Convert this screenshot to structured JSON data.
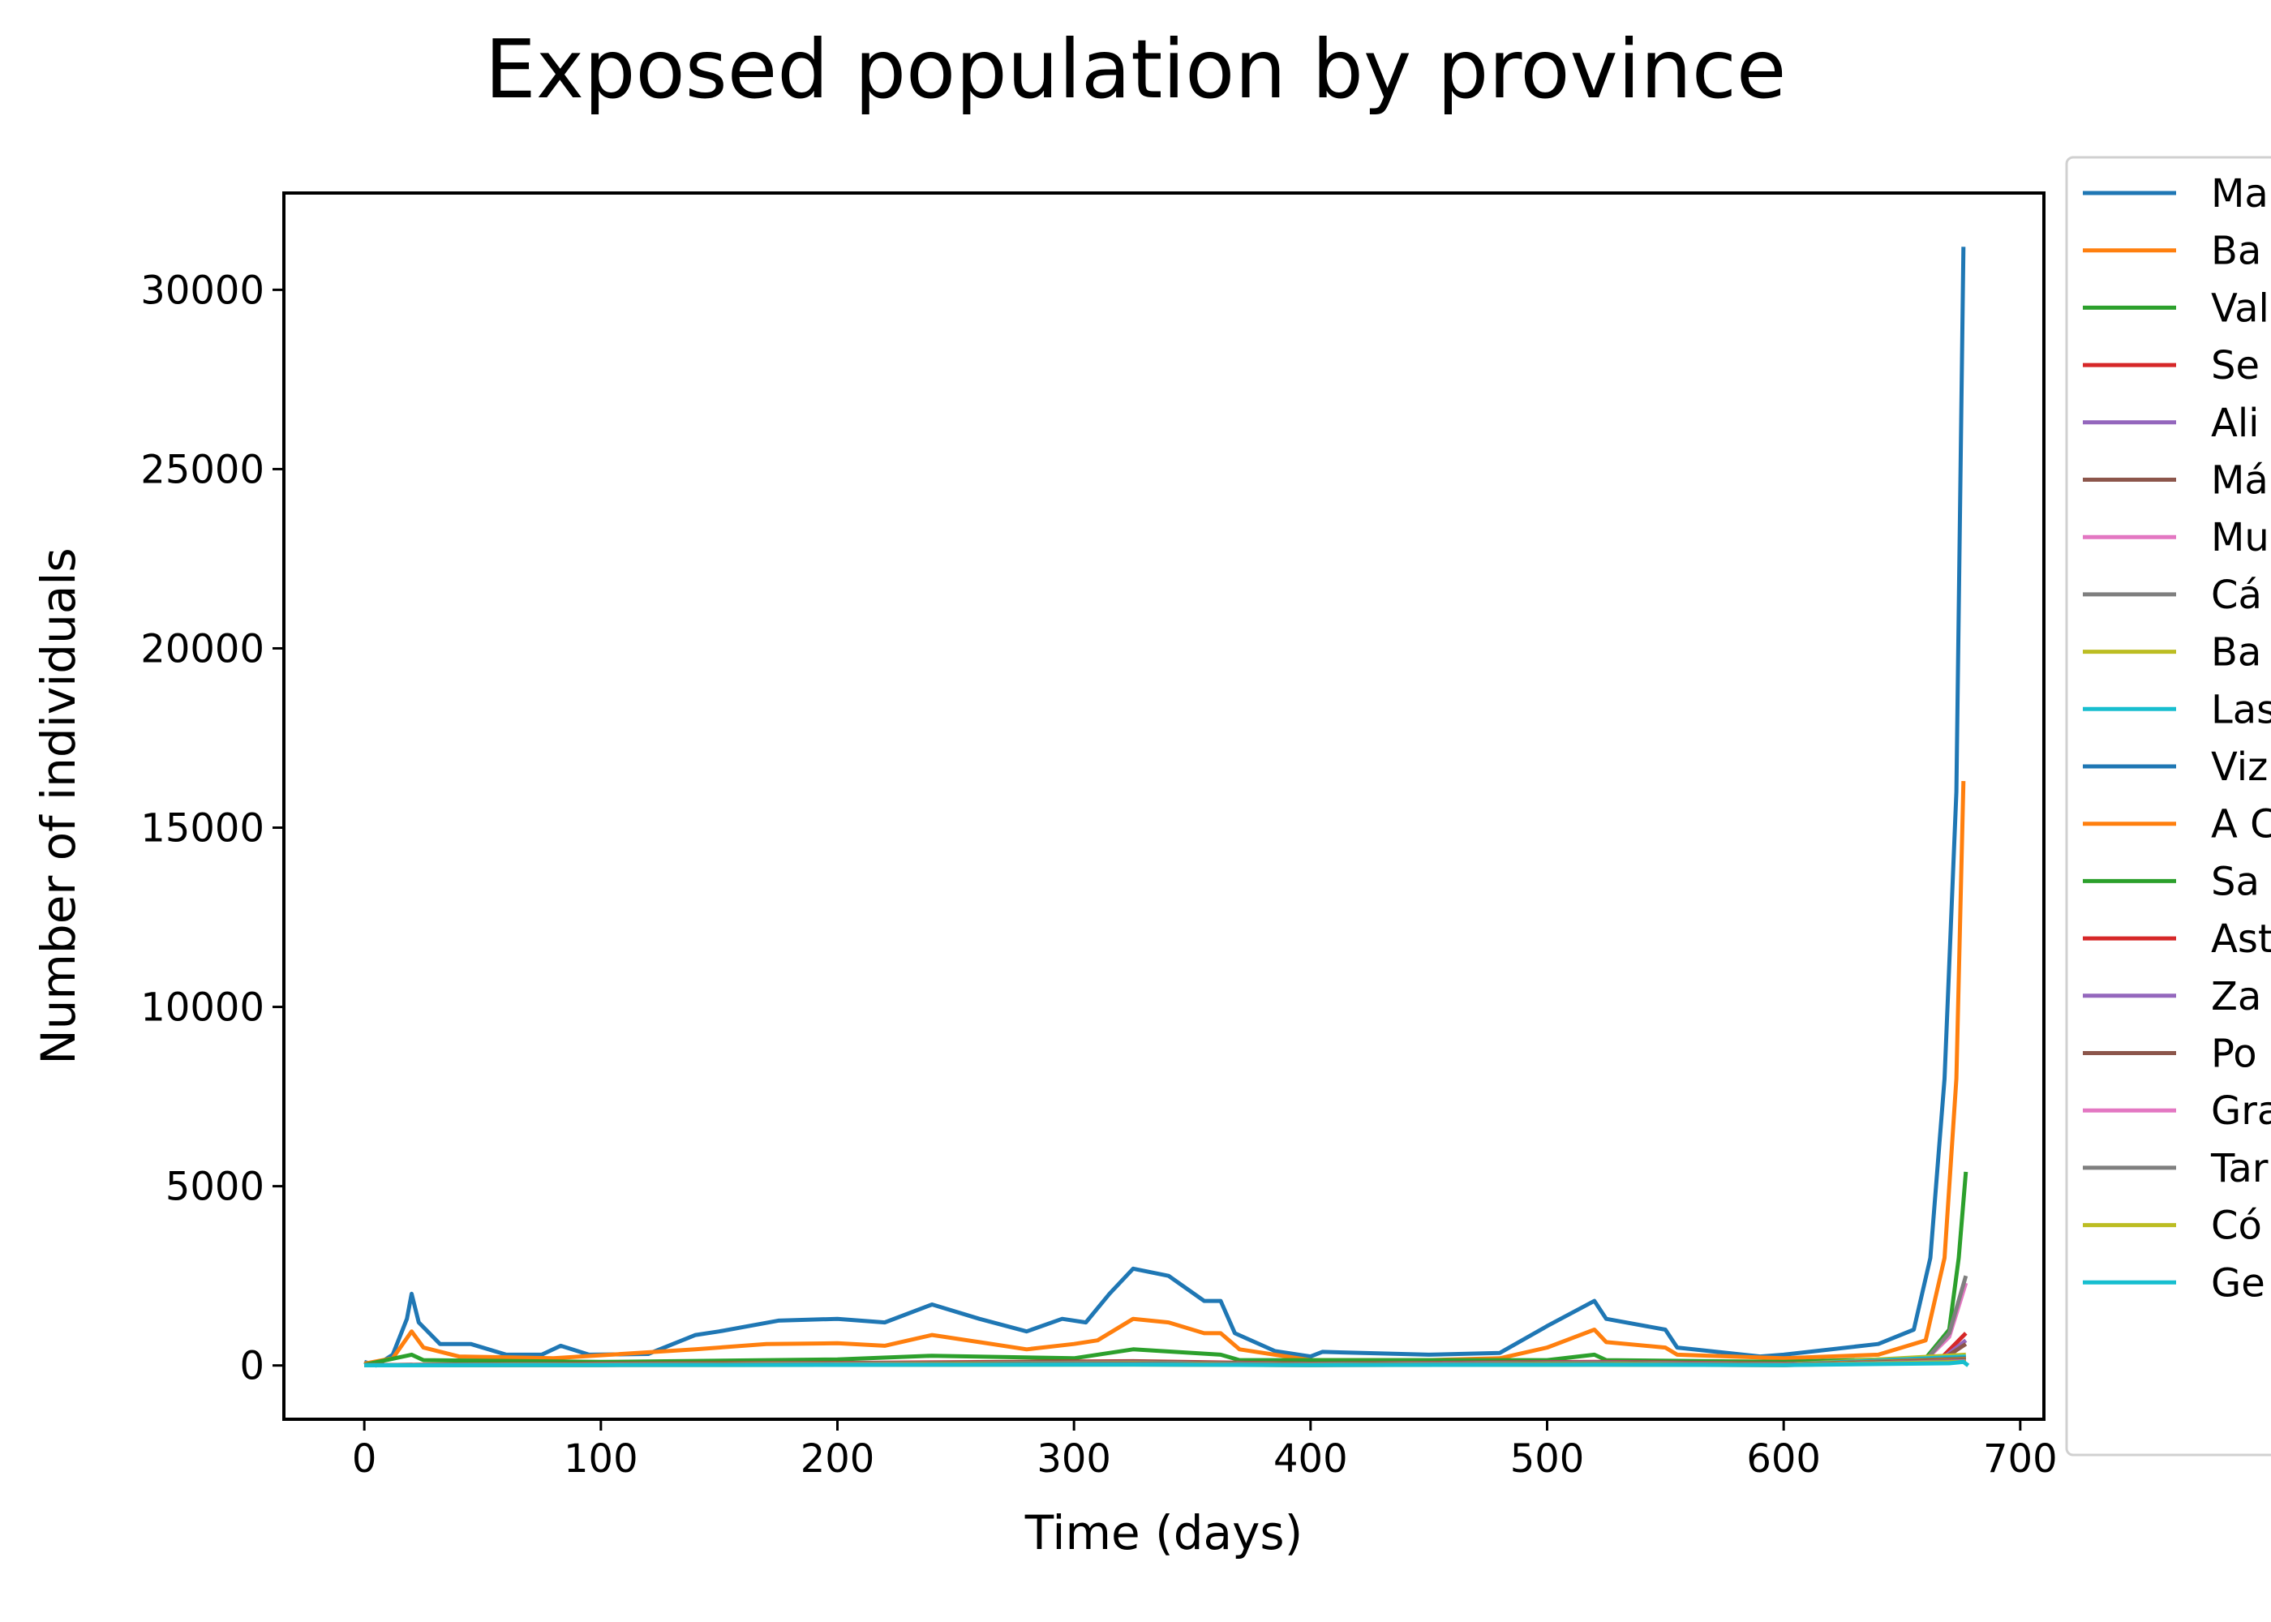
{
  "chart_data": {
    "type": "line",
    "title": "Exposed population by province",
    "xlabel": "Time (days)",
    "ylabel": "Number of individuals",
    "xlim": [
      -34,
      710
    ],
    "ylim": [
      -1500,
      32700
    ],
    "xticks": [
      0,
      100,
      200,
      300,
      400,
      500,
      600,
      700
    ],
    "yticks": [
      0,
      5000,
      10000,
      15000,
      20000,
      25000,
      30000
    ],
    "grid": false,
    "legend_position": "outside-right",
    "series": [
      {
        "name": "Ma",
        "color": "#1f77b4",
        "points": [
          [
            0,
            100
          ],
          [
            5,
            0
          ],
          [
            12,
            300
          ],
          [
            18,
            1300
          ],
          [
            20,
            2000
          ],
          [
            23,
            1200
          ],
          [
            32,
            600
          ],
          [
            45,
            600
          ],
          [
            60,
            300
          ],
          [
            75,
            300
          ],
          [
            83,
            550
          ],
          [
            95,
            300
          ],
          [
            120,
            320
          ],
          [
            140,
            850
          ],
          [
            150,
            950
          ],
          [
            175,
            1250
          ],
          [
            200,
            1300
          ],
          [
            220,
            1200
          ],
          [
            240,
            1700
          ],
          [
            260,
            1300
          ],
          [
            280,
            950
          ],
          [
            295,
            1300
          ],
          [
            305,
            1200
          ],
          [
            315,
            2000
          ],
          [
            325,
            2700
          ],
          [
            340,
            2500
          ],
          [
            355,
            1800
          ],
          [
            362,
            1800
          ],
          [
            368,
            900
          ],
          [
            385,
            400
          ],
          [
            400,
            250
          ],
          [
            405,
            380
          ],
          [
            450,
            300
          ],
          [
            480,
            350
          ],
          [
            500,
            1100
          ],
          [
            520,
            1800
          ],
          [
            525,
            1300
          ],
          [
            550,
            1000
          ],
          [
            555,
            500
          ],
          [
            590,
            250
          ],
          [
            600,
            300
          ],
          [
            640,
            600
          ],
          [
            655,
            1000
          ],
          [
            662,
            3000
          ],
          [
            668,
            8000
          ],
          [
            673,
            16000
          ],
          [
            676,
            31200
          ]
        ]
      },
      {
        "name": "Ba",
        "color": "#ff7f0e",
        "points": [
          [
            0,
            50
          ],
          [
            12,
            200
          ],
          [
            20,
            950
          ],
          [
            25,
            500
          ],
          [
            40,
            250
          ],
          [
            80,
            200
          ],
          [
            140,
            450
          ],
          [
            170,
            600
          ],
          [
            200,
            620
          ],
          [
            220,
            550
          ],
          [
            240,
            850
          ],
          [
            260,
            650
          ],
          [
            280,
            450
          ],
          [
            300,
            600
          ],
          [
            310,
            700
          ],
          [
            325,
            1300
          ],
          [
            340,
            1200
          ],
          [
            355,
            900
          ],
          [
            362,
            900
          ],
          [
            370,
            450
          ],
          [
            400,
            150
          ],
          [
            450,
            150
          ],
          [
            480,
            200
          ],
          [
            500,
            500
          ],
          [
            520,
            1000
          ],
          [
            525,
            650
          ],
          [
            550,
            500
          ],
          [
            555,
            300
          ],
          [
            600,
            200
          ],
          [
            640,
            300
          ],
          [
            660,
            700
          ],
          [
            668,
            3000
          ],
          [
            673,
            8000
          ],
          [
            676,
            16300
          ]
        ]
      },
      {
        "name": "Val",
        "color": "#2ca02c",
        "points": [
          [
            0,
            20
          ],
          [
            20,
            300
          ],
          [
            25,
            150
          ],
          [
            100,
            100
          ],
          [
            200,
            170
          ],
          [
            240,
            270
          ],
          [
            300,
            200
          ],
          [
            325,
            450
          ],
          [
            362,
            300
          ],
          [
            370,
            150
          ],
          [
            500,
            150
          ],
          [
            520,
            300
          ],
          [
            525,
            150
          ],
          [
            600,
            100
          ],
          [
            660,
            200
          ],
          [
            670,
            1000
          ],
          [
            674,
            3000
          ],
          [
            677,
            5400
          ]
        ]
      },
      {
        "name": "Se",
        "color": "#d62728",
        "points": [
          [
            0,
            10
          ],
          [
            100,
            50
          ],
          [
            200,
            70
          ],
          [
            325,
            120
          ],
          [
            400,
            50
          ],
          [
            520,
            100
          ],
          [
            600,
            50
          ],
          [
            665,
            100
          ],
          [
            677,
            900
          ]
        ]
      },
      {
        "name": "Ali",
        "color": "#9467bd",
        "points": [
          [
            0,
            10
          ],
          [
            100,
            40
          ],
          [
            200,
            60
          ],
          [
            325,
            100
          ],
          [
            400,
            40
          ],
          [
            520,
            90
          ],
          [
            600,
            40
          ],
          [
            665,
            90
          ],
          [
            677,
            700
          ]
        ]
      },
      {
        "name": "Má",
        "color": "#8c564b",
        "points": [
          [
            0,
            10
          ],
          [
            100,
            40
          ],
          [
            200,
            60
          ],
          [
            325,
            110
          ],
          [
            400,
            40
          ],
          [
            520,
            80
          ],
          [
            600,
            40
          ],
          [
            665,
            80
          ],
          [
            677,
            600
          ]
        ]
      },
      {
        "name": "Mu",
        "color": "#e377c2",
        "points": [
          [
            0,
            10
          ],
          [
            100,
            30
          ],
          [
            200,
            50
          ],
          [
            325,
            80
          ],
          [
            400,
            30
          ],
          [
            520,
            70
          ],
          [
            600,
            30
          ],
          [
            660,
            150
          ],
          [
            670,
            800
          ],
          [
            677,
            2300
          ]
        ]
      },
      {
        "name": "Cá",
        "color": "#7f7f7f",
        "points": [
          [
            0,
            10
          ],
          [
            100,
            30
          ],
          [
            200,
            50
          ],
          [
            325,
            80
          ],
          [
            400,
            30
          ],
          [
            520,
            70
          ],
          [
            600,
            30
          ],
          [
            660,
            150
          ],
          [
            670,
            900
          ],
          [
            677,
            2500
          ]
        ]
      },
      {
        "name": "Ba",
        "color": "#bcbd22",
        "points": [
          [
            0,
            5
          ],
          [
            100,
            25
          ],
          [
            200,
            40
          ],
          [
            325,
            60
          ],
          [
            400,
            25
          ],
          [
            520,
            50
          ],
          [
            600,
            25
          ],
          [
            677,
            300
          ]
        ]
      },
      {
        "name": "Las",
        "color": "#17becf",
        "points": [
          [
            0,
            5
          ],
          [
            100,
            20
          ],
          [
            200,
            30
          ],
          [
            325,
            50
          ],
          [
            400,
            20
          ],
          [
            520,
            40
          ],
          [
            600,
            20
          ],
          [
            677,
            250
          ]
        ]
      },
      {
        "name": "Viz",
        "color": "#1f77b4",
        "points": [
          [
            0,
            5
          ],
          [
            100,
            20
          ],
          [
            200,
            30
          ],
          [
            325,
            50
          ],
          [
            400,
            20
          ],
          [
            520,
            40
          ],
          [
            600,
            20
          ],
          [
            677,
            200
          ]
        ]
      },
      {
        "name": "A C",
        "color": "#ff7f0e",
        "points": [
          [
            0,
            5
          ],
          [
            100,
            20
          ],
          [
            200,
            30
          ],
          [
            325,
            45
          ],
          [
            400,
            20
          ],
          [
            520,
            40
          ],
          [
            600,
            20
          ],
          [
            677,
            180
          ]
        ]
      },
      {
        "name": "Sa",
        "color": "#2ca02c",
        "points": [
          [
            0,
            5
          ],
          [
            100,
            15
          ],
          [
            200,
            25
          ],
          [
            325,
            40
          ],
          [
            400,
            15
          ],
          [
            520,
            35
          ],
          [
            600,
            15
          ],
          [
            677,
            160
          ]
        ]
      },
      {
        "name": "Ast",
        "color": "#d62728",
        "points": [
          [
            0,
            5
          ],
          [
            100,
            15
          ],
          [
            200,
            25
          ],
          [
            325,
            40
          ],
          [
            400,
            15
          ],
          [
            520,
            30
          ],
          [
            600,
            15
          ],
          [
            677,
            150
          ]
        ]
      },
      {
        "name": "Za",
        "color": "#9467bd",
        "points": [
          [
            0,
            5
          ],
          [
            100,
            15
          ],
          [
            200,
            20
          ],
          [
            325,
            35
          ],
          [
            400,
            15
          ],
          [
            520,
            30
          ],
          [
            600,
            15
          ],
          [
            677,
            140
          ]
        ]
      },
      {
        "name": "Po",
        "color": "#8c564b",
        "points": [
          [
            0,
            5
          ],
          [
            100,
            15
          ],
          [
            200,
            20
          ],
          [
            325,
            35
          ],
          [
            400,
            15
          ],
          [
            520,
            30
          ],
          [
            600,
            15
          ],
          [
            677,
            130
          ]
        ]
      },
      {
        "name": "Gra",
        "color": "#e377c2",
        "points": [
          [
            0,
            5
          ],
          [
            100,
            10
          ],
          [
            200,
            20
          ],
          [
            325,
            30
          ],
          [
            400,
            10
          ],
          [
            520,
            25
          ],
          [
            600,
            10
          ],
          [
            677,
            120
          ]
        ]
      },
      {
        "name": "Tar",
        "color": "#7f7f7f",
        "points": [
          [
            0,
            5
          ],
          [
            100,
            10
          ],
          [
            200,
            20
          ],
          [
            325,
            30
          ],
          [
            400,
            10
          ],
          [
            520,
            25
          ],
          [
            600,
            10
          ],
          [
            677,
            110
          ]
        ]
      },
      {
        "name": "Có",
        "color": "#bcbd22",
        "points": [
          [
            0,
            5
          ],
          [
            100,
            10
          ],
          [
            200,
            15
          ],
          [
            325,
            25
          ],
          [
            400,
            10
          ],
          [
            520,
            20
          ],
          [
            600,
            10
          ],
          [
            677,
            100
          ]
        ]
      },
      {
        "name": "Ge",
        "color": "#17becf",
        "points": [
          [
            0,
            5
          ],
          [
            100,
            10
          ],
          [
            200,
            15
          ],
          [
            325,
            25
          ],
          [
            400,
            10
          ],
          [
            520,
            20
          ],
          [
            600,
            10
          ],
          [
            670,
            60
          ],
          [
            676,
            100
          ],
          [
            678,
            0
          ]
        ]
      }
    ]
  }
}
